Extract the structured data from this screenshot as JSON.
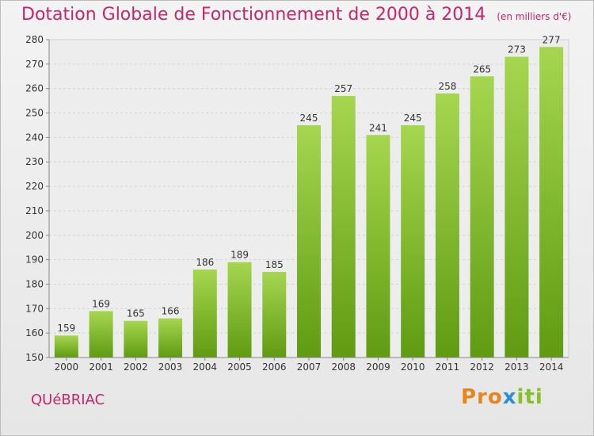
{
  "header": {
    "title": "Dotation Globale de Fonctionnement de 2000 à 2014",
    "unit": "(en milliers d'€)"
  },
  "footer": {
    "place": "QUéBRIAC",
    "logo": {
      "p1": "Pro",
      "p2": "x",
      "p3": "iti"
    }
  },
  "colors": {
    "title": "#c8266b",
    "bar_top": "#a6d64f",
    "bar_bottom": "#5f9b12"
  },
  "chart_data": {
    "type": "bar",
    "categories": [
      "2000",
      "2001",
      "2002",
      "2003",
      "2004",
      "2005",
      "2006",
      "2007",
      "2008",
      "2009",
      "2010",
      "2011",
      "2012",
      "2013",
      "2014"
    ],
    "values": [
      159,
      169,
      165,
      166,
      186,
      189,
      185,
      245,
      257,
      241,
      245,
      258,
      265,
      273,
      277
    ],
    "title": "Dotation Globale de Fonctionnement de 2000 à 2014",
    "subtitle": "(en milliers d'€)",
    "ylim": [
      150,
      280
    ],
    "yticks": [
      150,
      160,
      170,
      180,
      190,
      200,
      210,
      220,
      230,
      240,
      250,
      260,
      270,
      280
    ],
    "grid": true
  }
}
